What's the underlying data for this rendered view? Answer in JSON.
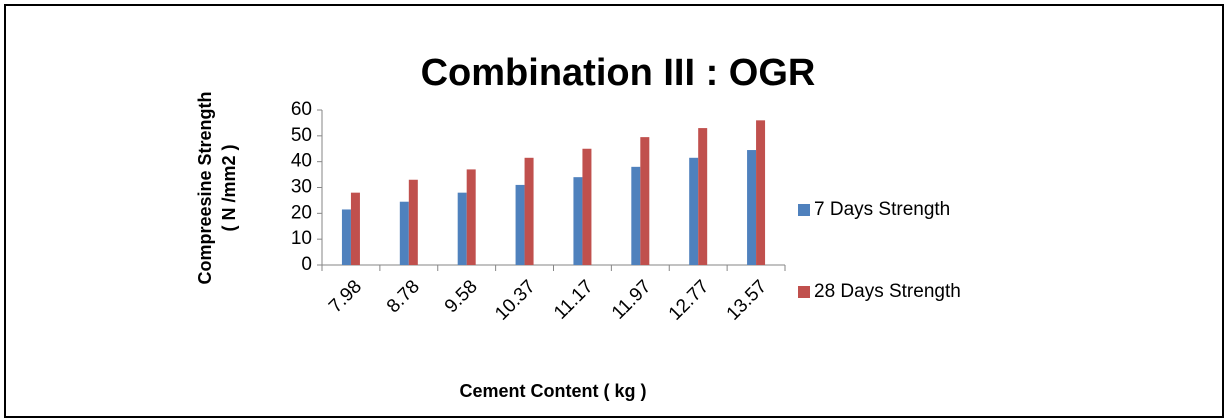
{
  "chart_data": {
    "type": "bar",
    "title": "Combination III : OGR",
    "y_label": [
      "Compreesine Strength",
      "( N /mm2 )"
    ],
    "x_label": "Cement Content ( kg )",
    "categories": [
      "7.98",
      "8.78",
      "9.58",
      "10.37",
      "11.17",
      "11.97",
      "12.77",
      "13.57"
    ],
    "series": [
      {
        "name": "7 Days Strength",
        "color": "#4f81bd",
        "values": [
          21.5,
          24.5,
          28,
          31,
          34,
          38,
          41.5,
          44.5
        ]
      },
      {
        "name": "28 Days Strength",
        "color": "#c0504d",
        "values": [
          28,
          33,
          37,
          41.5,
          45,
          49.5,
          53,
          56
        ]
      }
    ],
    "ylim": [
      0,
      60
    ],
    "yticks": [
      0,
      10,
      20,
      30,
      40,
      50,
      60
    ],
    "grid": false,
    "legend": "right"
  }
}
